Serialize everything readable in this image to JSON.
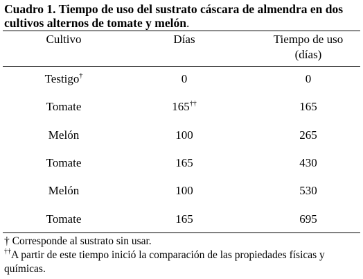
{
  "table": {
    "title": "Cuadro 1. Tiempo de uso del sustrato cáscara de almendra en dos cultivos alternos de tomate y melón",
    "title_end": ".",
    "headers": [
      "Cultivo",
      "Días",
      "Tiempo de uso",
      "(días)"
    ],
    "rows": [
      {
        "cultivo": "Testigo",
        "cultivo_sup": "†",
        "dias": 0,
        "tiempo": 0
      },
      {
        "cultivo": "Tomate",
        "dias": 165,
        "dias_sup": "††",
        "tiempo": 165
      },
      {
        "cultivo": "Melón",
        "dias": 100,
        "tiempo": 265
      },
      {
        "cultivo": "Tomate",
        "dias": 165,
        "tiempo": 430
      },
      {
        "cultivo": "Melón",
        "dias": 100,
        "tiempo": 530
      },
      {
        "cultivo": "Tomate",
        "dias": 165,
        "tiempo": 695
      }
    ],
    "footnotes": [
      {
        "mark": "†",
        "text": " Corresponde al sustrato sin usar."
      },
      {
        "mark": "††",
        "text": "A partir de este tiempo inició la comparación de las propiedades físicas y químicas."
      }
    ]
  }
}
